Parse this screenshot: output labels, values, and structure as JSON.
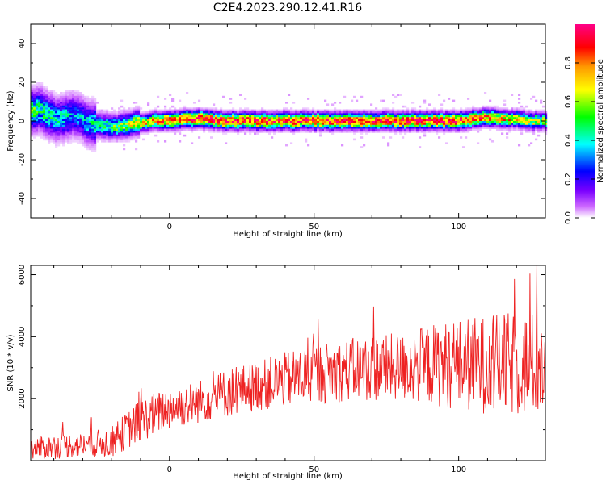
{
  "figure": {
    "title": "C2E4.2023.290.12.41.R16"
  },
  "chart_data": [
    {
      "type": "heatmap",
      "title": "C2E4.2023.290.12.41.R16",
      "xlabel": "Height of straight line (km)",
      "ylabel": "Frequency (Hz)",
      "xlim": [
        -48,
        130
      ],
      "ylim": [
        -50,
        50
      ],
      "x_ticks": [
        0,
        50,
        100
      ],
      "y_ticks": [
        -40,
        -20,
        0,
        20,
        40
      ],
      "x_tick_labels": [
        "0",
        "50",
        "100"
      ],
      "y_tick_labels": [
        "-40",
        "-20",
        "0",
        "20",
        "40"
      ],
      "colorbar": {
        "label": "Normalized spectral amplitude",
        "range": [
          0,
          1
        ],
        "ticks": [
          0.0,
          0.2,
          0.4,
          0.6,
          0.8
        ],
        "tick_labels": [
          "0.0",
          "0.2",
          "0.4",
          "0.6",
          "0.8"
        ],
        "colors": [
          "#ffffff",
          "#cc66ff",
          "#7a00ff",
          "#0000ff",
          "#00ffff",
          "#00ff00",
          "#ffff00",
          "#ff9900",
          "#ff0000",
          "#ff0088"
        ]
      },
      "ridge": {
        "x": [
          -48,
          -45,
          -42,
          -39,
          -36,
          -33,
          -30,
          -27,
          -24,
          -21,
          -18,
          -15,
          -12,
          -9,
          -6,
          -3,
          0,
          5,
          10,
          20,
          30,
          40,
          50,
          60,
          70,
          80,
          90,
          100,
          105,
          110,
          115,
          120,
          125,
          130
        ],
        "frequency_hz": [
          5,
          6,
          3,
          1,
          2,
          3,
          1,
          -2,
          -2,
          -3,
          -3,
          -2,
          -1,
          -1,
          0,
          0,
          0,
          1,
          1,
          0,
          0,
          0,
          0,
          0,
          0,
          0,
          0,
          0,
          1,
          2,
          1,
          1,
          0,
          0
        ],
        "peak_amplitude": [
          0.55,
          0.5,
          0.5,
          0.45,
          0.45,
          0.4,
          0.4,
          0.45,
          0.5,
          0.5,
          0.55,
          0.6,
          0.65,
          0.7,
          0.75,
          0.8,
          0.85,
          0.85,
          0.9,
          0.9,
          0.9,
          0.9,
          0.9,
          0.9,
          0.9,
          0.9,
          0.9,
          0.9,
          0.85,
          0.8,
          0.75,
          0.7,
          0.65,
          0.6
        ]
      }
    },
    {
      "type": "line",
      "xlabel": "Height of straight line (km)",
      "ylabel": "SNR (10 * v/v)",
      "xlim": [
        -48,
        130
      ],
      "ylim": [
        0,
        6300
      ],
      "x_ticks": [
        0,
        50,
        100
      ],
      "y_ticks": [
        2000,
        4000,
        6000
      ],
      "x_tick_labels": [
        "0",
        "50",
        "100"
      ],
      "y_tick_labels": [
        "2000",
        "4000",
        "6000"
      ],
      "color": "#ee2222",
      "envelope": {
        "x": [
          -48,
          -40,
          -30,
          -20,
          -10,
          0,
          10,
          20,
          30,
          40,
          50,
          60,
          70,
          80,
          90,
          100,
          110,
          120,
          130
        ],
        "mean": [
          400,
          450,
          500,
          600,
          1300,
          1700,
          1900,
          2200,
          2400,
          2600,
          2800,
          2900,
          3000,
          3000,
          3100,
          3100,
          3100,
          3100,
          3100
        ],
        "spread": [
          350,
          400,
          400,
          500,
          700,
          700,
          700,
          800,
          800,
          900,
          1000,
          1000,
          1100,
          1100,
          1300,
          1500,
          1600,
          1700,
          1700
        ]
      }
    }
  ]
}
